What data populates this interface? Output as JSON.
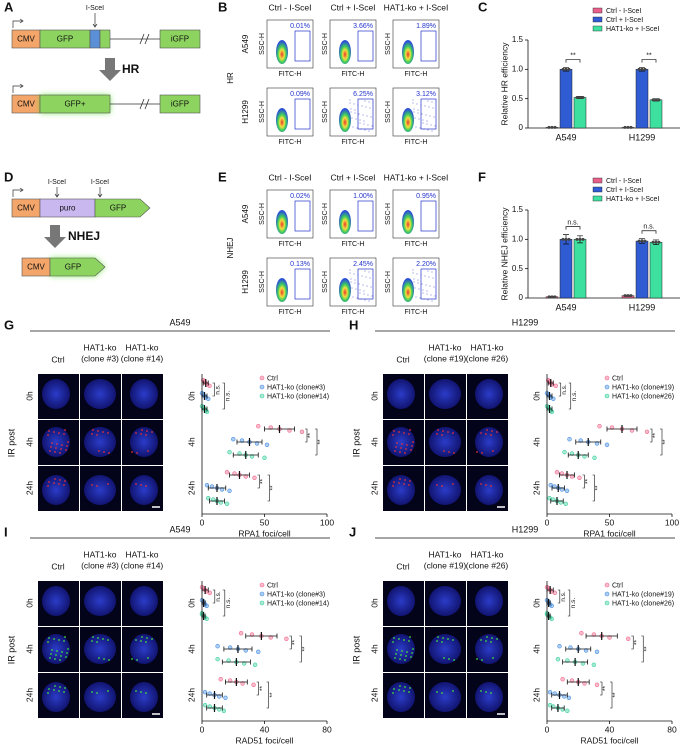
{
  "panel_a": {
    "label": "A",
    "site": "I-SceI",
    "row1": [
      "CMV",
      "GFP",
      "iGFP"
    ],
    "arrow": "HR",
    "row2": [
      "CMV",
      "GFP+",
      "iGFP"
    ]
  },
  "panel_b": {
    "label": "B",
    "side_label": "HR",
    "columns": [
      "Ctrl - I-SceI",
      "Ctrl + I-SceI",
      "HAT1-ko + I-SceI"
    ],
    "rows": [
      "A549",
      "H1299"
    ],
    "percents": [
      [
        "0.01%",
        "3.66%",
        "1.89%"
      ],
      [
        "0.09%",
        "6.25%",
        "3.12%"
      ]
    ],
    "x_label": "FITC-H",
    "y_label": "SSC-H"
  },
  "panel_d": {
    "label": "D",
    "sites": [
      "I-SceI",
      "I-SceI"
    ],
    "row1": [
      "CMV",
      "puro",
      "GFP"
    ],
    "arrow": "NHEJ",
    "row2": [
      "CMV",
      "GFP"
    ]
  },
  "panel_e": {
    "label": "E",
    "side_label": "NHEJ",
    "columns": [
      "Ctrl - I-SceI",
      "Ctrl + I-SceI",
      "HAT1-ko + I-SceI"
    ],
    "rows": [
      "A549",
      "H1299"
    ],
    "percents": [
      [
        "0.02%",
        "1.00%",
        "0.95%"
      ],
      [
        "0.13%",
        "2.45%",
        "2.20%"
      ]
    ],
    "x_label": "FITC-H",
    "y_label": "SSC-H"
  },
  "chart_data": [
    {
      "type": "bar",
      "panel": "C",
      "y_label": "Relative HR efficiency",
      "categories": [
        "A549",
        "H1299"
      ],
      "series": [
        {
          "name": "Ctrl - I-SceI",
          "color": "#e8608a",
          "values": [
            0.01,
            0.01
          ],
          "errors": [
            0,
            0
          ]
        },
        {
          "name": "Ctrl + I-SceI",
          "color": "#2f5bd3",
          "values": [
            1.0,
            1.0
          ],
          "errors": [
            0.03,
            0.03
          ]
        },
        {
          "name": "HAT1-ko + I-SceI",
          "color": "#3ee0a0",
          "values": [
            0.52,
            0.48
          ],
          "errors": [
            0.02,
            0.02
          ]
        }
      ],
      "ylim": [
        0,
        1.5
      ],
      "yticks": [
        0,
        0.5,
        {
          "value": 1,
          "label": "1.0"
        },
        1.5
      ],
      "significance": [
        "**",
        "**"
      ]
    },
    {
      "type": "bar",
      "panel": "F",
      "y_label": "Relative NHEJ efficiency",
      "categories": [
        "A549",
        "H1299"
      ],
      "series": [
        {
          "name": "Ctrl - I-SceI",
          "color": "#e8608a",
          "values": [
            0.02,
            0.04
          ],
          "errors": [
            0.01,
            0.01
          ]
        },
        {
          "name": "Ctrl + I-SceI",
          "color": "#2f5bd3",
          "values": [
            1.0,
            0.97
          ],
          "errors": [
            0.08,
            0.04
          ]
        },
        {
          "name": "HAT1-ko + I-SceI",
          "color": "#3ee0a0",
          "values": [
            1.0,
            0.95
          ],
          "errors": [
            0.06,
            0.04
          ]
        }
      ],
      "ylim": [
        0,
        1.5
      ],
      "yticks": [
        0,
        0.5,
        {
          "value": 1,
          "label": "1.0"
        },
        1.5
      ],
      "significance": [
        "n.s.",
        "n.s."
      ]
    },
    {
      "type": "dot",
      "panel": "G",
      "title": "A549",
      "image_columns": [
        [
          "Ctrl"
        ],
        [
          "HAT1-ko",
          "(clone #3)"
        ],
        [
          "HAT1-ko",
          "(clone #14)"
        ]
      ],
      "y_label": "IR post",
      "categories": [
        "0h",
        "4h",
        "24h"
      ],
      "x_label": "RPA1 foci/cell",
      "xlim": [
        0,
        100
      ],
      "xticks": [
        0,
        50,
        100
      ],
      "series": [
        {
          "name": "Ctrl",
          "color": "#f06a8e",
          "values": [
            3,
            62,
            30
          ],
          "errors": [
            2,
            12,
            8
          ],
          "points": [
            [
              1,
              2,
              3,
              4,
              6
            ],
            [
              45,
              55,
              62,
              70,
              80
            ],
            [
              20,
              26,
              30,
              35,
              42
            ]
          ]
        },
        {
          "name": "HAT1-ko (clone#3)",
          "color": "#4a90e2",
          "values": [
            2,
            38,
            12
          ],
          "errors": [
            2,
            10,
            7
          ],
          "points": [
            [
              0,
              1,
              2,
              3,
              5
            ],
            [
              25,
              32,
              38,
              44,
              52
            ],
            [
              4,
              8,
              12,
              16,
              22
            ]
          ]
        },
        {
          "name": "HAT1-ko (clone#14)",
          "color": "#3fd0a0",
          "values": [
            2,
            35,
            12
          ],
          "errors": [
            2,
            10,
            6
          ],
          "points": [
            [
              0,
              1,
              2,
              3,
              4
            ],
            [
              22,
              30,
              35,
              40,
              50
            ],
            [
              5,
              9,
              12,
              15,
              20
            ]
          ]
        }
      ],
      "significance": [
        [
          "n.s.",
          "n.s."
        ],
        [
          "**",
          "**"
        ],
        [
          "**",
          "**"
        ]
      ]
    },
    {
      "type": "dot",
      "panel": "H",
      "title": "H1299",
      "image_columns": [
        [
          "Ctrl"
        ],
        [
          "HAT1-ko",
          "(clone #19)"
        ],
        [
          "HAT1-ko",
          "(clone #26)"
        ]
      ],
      "y_label": "IR post",
      "categories": [
        "0h",
        "4h",
        "24h"
      ],
      "x_label": "RPA1 foci/cell",
      "xlim": [
        0,
        100
      ],
      "xticks": [
        0,
        50,
        100
      ],
      "series": [
        {
          "name": "Ctrl",
          "color": "#f06a8e",
          "values": [
            3,
            60,
            16
          ],
          "errors": [
            2,
            12,
            6
          ],
          "points": [
            [
              1,
              2,
              3,
              4,
              7
            ],
            [
              42,
              52,
              60,
              68,
              80
            ],
            [
              8,
              12,
              16,
              20,
              26
            ]
          ]
        },
        {
          "name": "HAT1-ko (clone#19)",
          "color": "#4a90e2",
          "values": [
            2,
            33,
            9
          ],
          "errors": [
            2,
            10,
            5
          ],
          "points": [
            [
              0,
              1,
              2,
              3,
              5
            ],
            [
              18,
              27,
              33,
              40,
              48
            ],
            [
              3,
              6,
              9,
              12,
              16
            ]
          ]
        },
        {
          "name": "HAT1-ko (clone#26)",
          "color": "#3fd0a0",
          "values": [
            2,
            25,
            8
          ],
          "errors": [
            2,
            8,
            5
          ],
          "points": [
            [
              0,
              1,
              2,
              3,
              4
            ],
            [
              14,
              20,
              25,
              30,
              38
            ],
            [
              2,
              5,
              8,
              11,
              15
            ]
          ]
        }
      ],
      "significance": [
        [
          "n.s.",
          "n.s."
        ],
        [
          "**",
          "**"
        ],
        [
          "**",
          "**"
        ]
      ]
    },
    {
      "type": "dot",
      "panel": "I",
      "title": "A549",
      "image_columns": [
        [
          "Ctrl"
        ],
        [
          "HAT1-ko",
          "(clone #3)"
        ],
        [
          "HAT1-ko",
          "(clone #14)"
        ]
      ],
      "y_label": "IR post",
      "categories": [
        "0h",
        "4h",
        "24h"
      ],
      "x_label": "RAD51 foci/cell",
      "xlim": [
        0,
        80
      ],
      "xticks": [
        0,
        40,
        80
      ],
      "series": [
        {
          "name": "Ctrl",
          "color": "#f06a8e",
          "values": [
            2,
            38,
            22
          ],
          "errors": [
            2,
            10,
            7
          ],
          "points": [
            [
              0,
              1,
              2,
              3,
              5
            ],
            [
              25,
              32,
              38,
              44,
              54
            ],
            [
              12,
              18,
              22,
              26,
              33
            ]
          ]
        },
        {
          "name": "HAT1-ko (clone#3)",
          "color": "#4a90e2",
          "values": [
            1,
            23,
            8
          ],
          "errors": [
            1,
            9,
            5
          ],
          "points": [
            [
              0,
              1,
              1,
              2,
              3
            ],
            [
              10,
              18,
              23,
              28,
              36
            ],
            [
              2,
              5,
              8,
              11,
              15
            ]
          ]
        },
        {
          "name": "HAT1-ko (clone#14)",
          "color": "#3fd0a0",
          "values": [
            1,
            22,
            8
          ],
          "errors": [
            1,
            9,
            5
          ],
          "points": [
            [
              0,
              0,
              1,
              2,
              3
            ],
            [
              10,
              17,
              22,
              27,
              34
            ],
            [
              2,
              5,
              8,
              11,
              14
            ]
          ]
        }
      ],
      "significance": [
        [
          "n.s.",
          "n.s."
        ],
        [
          "**",
          "**"
        ],
        [
          "**",
          "**"
        ]
      ]
    },
    {
      "type": "dot",
      "panel": "J",
      "title": "H1299",
      "image_columns": [
        [
          "Ctrl"
        ],
        [
          "HAT1-ko",
          "(clone #19)"
        ],
        [
          "HAT1-ko",
          "(clone #26)"
        ]
      ],
      "y_label": "IR post",
      "categories": [
        "0h",
        "4h",
        "24h"
      ],
      "x_label": "RAD51 foci/cell",
      "xlim": [
        0,
        80
      ],
      "xticks": [
        0,
        40,
        80
      ],
      "series": [
        {
          "name": "Ctrl",
          "color": "#f06a8e",
          "values": [
            2,
            35,
            20
          ],
          "errors": [
            2,
            10,
            7
          ],
          "points": [
            [
              0,
              1,
              2,
              3,
              5
            ],
            [
              22,
              30,
              35,
              40,
              52
            ],
            [
              10,
              16,
              20,
              24,
              32
            ]
          ]
        },
        {
          "name": "HAT1-ko (clone#19)",
          "color": "#4a90e2",
          "values": [
            1,
            20,
            8
          ],
          "errors": [
            1,
            8,
            5
          ],
          "points": [
            [
              0,
              1,
              1,
              2,
              3
            ],
            [
              8,
              15,
              20,
              25,
              32
            ],
            [
              2,
              5,
              8,
              11,
              14
            ]
          ]
        },
        {
          "name": "HAT1-ko (clone#26)",
          "color": "#3fd0a0",
          "values": [
            1,
            18,
            7
          ],
          "errors": [
            1,
            8,
            4
          ],
          "points": [
            [
              0,
              0,
              1,
              2,
              3
            ],
            [
              7,
              13,
              18,
              23,
              30
            ],
            [
              2,
              4,
              7,
              10,
              13
            ]
          ]
        }
      ],
      "significance": [
        [
          "n.s.",
          "n.s."
        ],
        [
          "**",
          "**"
        ],
        [
          "**",
          "**"
        ]
      ]
    }
  ]
}
